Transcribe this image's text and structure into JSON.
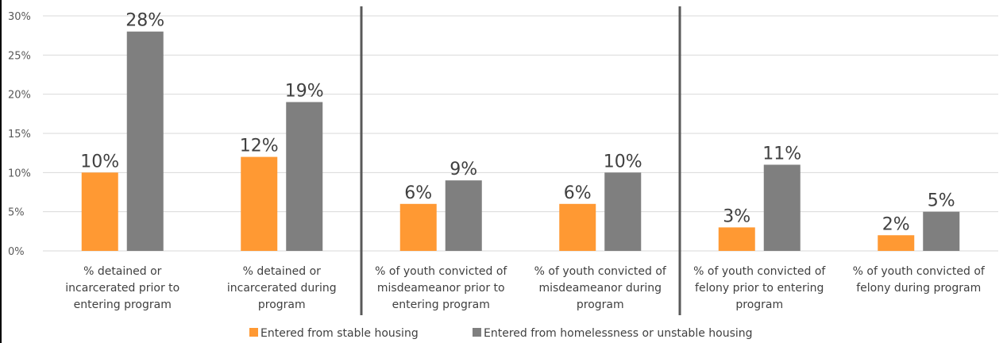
{
  "chart_data": {
    "type": "bar",
    "categories": [
      [
        "% detained or",
        "incarcerated prior to",
        "entering program"
      ],
      [
        "% detained or",
        "incarcerated during",
        "program"
      ],
      [
        "% of youth convicted of",
        "misdeameanor prior to",
        "entering program"
      ],
      [
        "% of youth convicted of",
        "misdeameanor during",
        "program"
      ],
      [
        "% of youth convicted of",
        "felony prior to entering",
        "program"
      ],
      [
        "% of youth convicted of",
        "felony during program"
      ]
    ],
    "series": [
      {
        "name": "Entered from stable housing",
        "values": [
          10,
          12,
          6,
          6,
          3,
          2
        ],
        "labels": [
          "10%",
          "12%",
          "6%",
          "6%",
          "3%",
          "2%"
        ],
        "color": "#FF9933"
      },
      {
        "name": "Entered from homelessness or unstable housing",
        "values": [
          28,
          19,
          9,
          10,
          11,
          5
        ],
        "labels": [
          "28%",
          "19%",
          "9%",
          "10%",
          "11%",
          "5%"
        ],
        "color": "#7F7F7F"
      }
    ],
    "ylim": [
      0,
      30
    ],
    "yticks": [
      0,
      5,
      10,
      15,
      20,
      25,
      30
    ],
    "ytick_labels": [
      "0%",
      "5%",
      "10%",
      "15%",
      "20%",
      "25%",
      "30%"
    ],
    "grid": true,
    "group_dividers_after": [
      1,
      3
    ],
    "legend_position": "bottom",
    "title": "",
    "xlabel": "",
    "ylabel": ""
  }
}
